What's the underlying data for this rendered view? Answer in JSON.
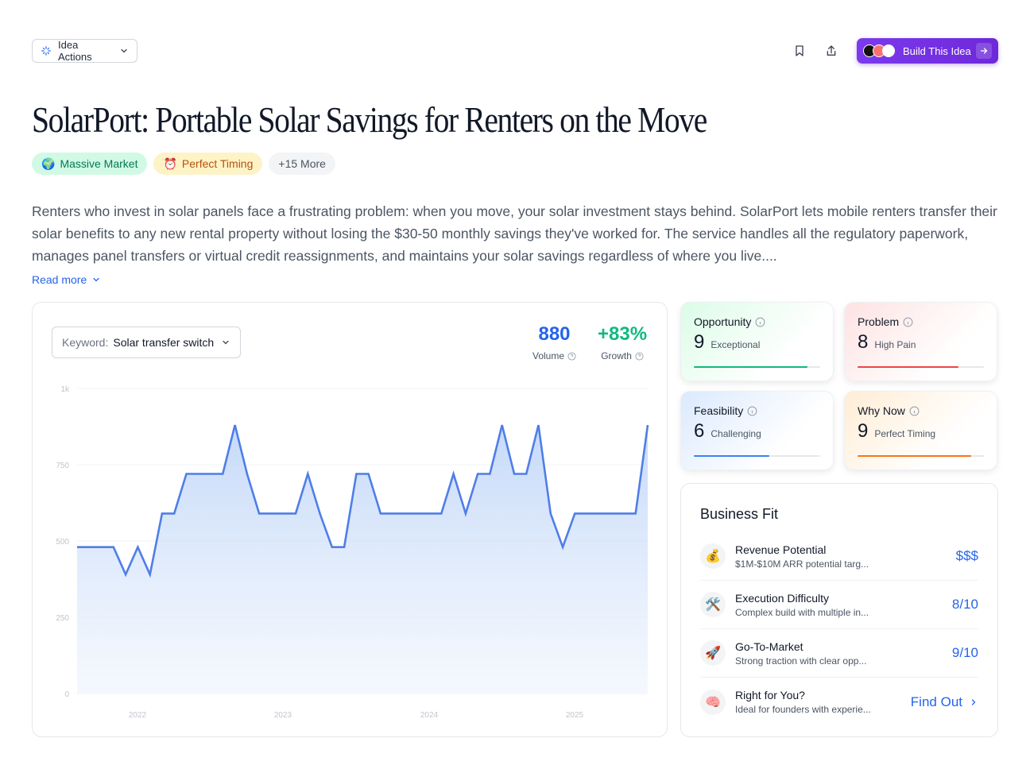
{
  "toolbar": {
    "idea_actions_label": "Idea Actions",
    "build_label": "Build This Idea"
  },
  "title": "SolarPort: Portable Solar Savings for Renters on the Move",
  "tags": [
    {
      "emoji": "🌍",
      "label": "Massive Market"
    },
    {
      "emoji": "⏰",
      "label": "Perfect Timing"
    },
    {
      "emoji": "",
      "label": "+15 More"
    }
  ],
  "description": "Renters who invest in solar panels face a frustrating problem: when you move, your solar investment stays behind. SolarPort lets mobile renters transfer their solar benefits to any new rental property without losing the $30-50 monthly savings they've worked for. The service handles all the regulatory paperwork, manages panel transfers or virtual credit reassignments, and maintains your solar savings regardless of where you live....",
  "read_more": "Read more",
  "keyword": {
    "label": "Keyword:",
    "value": "Solar transfer switch"
  },
  "stats": {
    "volume": {
      "value": "880",
      "label": "Volume"
    },
    "growth": {
      "value": "+83%",
      "label": "Growth"
    }
  },
  "scores": [
    {
      "name": "Opportunity",
      "value": "9",
      "label": "Exceptional",
      "level": 0.9,
      "color": "#10b981"
    },
    {
      "name": "Problem",
      "value": "8",
      "label": "High Pain",
      "level": 0.8,
      "color": "#ef4444"
    },
    {
      "name": "Feasibility",
      "value": "6",
      "label": "Challenging",
      "level": 0.6,
      "color": "#3b82f6"
    },
    {
      "name": "Why Now",
      "value": "9",
      "label": "Perfect Timing",
      "level": 0.9,
      "color": "#f97316"
    }
  ],
  "business_fit": {
    "title": "Business Fit",
    "rows": [
      {
        "icon": "💰",
        "name": "Revenue Potential",
        "desc": "$1M-$10M ARR potential targ...",
        "value": "$$$"
      },
      {
        "icon": "🛠️",
        "name": "Execution Difficulty",
        "desc": "Complex build with multiple in...",
        "value": "8/10"
      },
      {
        "icon": "🚀",
        "name": "Go-To-Market",
        "desc": "Strong traction with clear opp...",
        "value": "9/10"
      },
      {
        "icon": "🧠",
        "name": "Right for You?",
        "desc": "Ideal for founders with experie...",
        "value": "Find Out"
      }
    ]
  },
  "chart_data": {
    "type": "area",
    "title": "",
    "xlabel": "",
    "ylabel": "",
    "ylim": [
      0,
      1000
    ],
    "y_ticks": [
      "0",
      "250",
      "500",
      "750",
      "1k"
    ],
    "x_ticks": [
      "2022",
      "2023",
      "2024",
      "2025"
    ],
    "line_color": "#4f7ee8",
    "series": [
      {
        "values": [
          480,
          480,
          480,
          480,
          390,
          480,
          390,
          590,
          590,
          720,
          720,
          720,
          720,
          880,
          720,
          590,
          590,
          590,
          590,
          720,
          590,
          480,
          480,
          720,
          720,
          590,
          590,
          590,
          590,
          590,
          590,
          720,
          590,
          720,
          720,
          880,
          720,
          720,
          880,
          590,
          480,
          590,
          590,
          590,
          590,
          590,
          590,
          880
        ]
      }
    ]
  }
}
